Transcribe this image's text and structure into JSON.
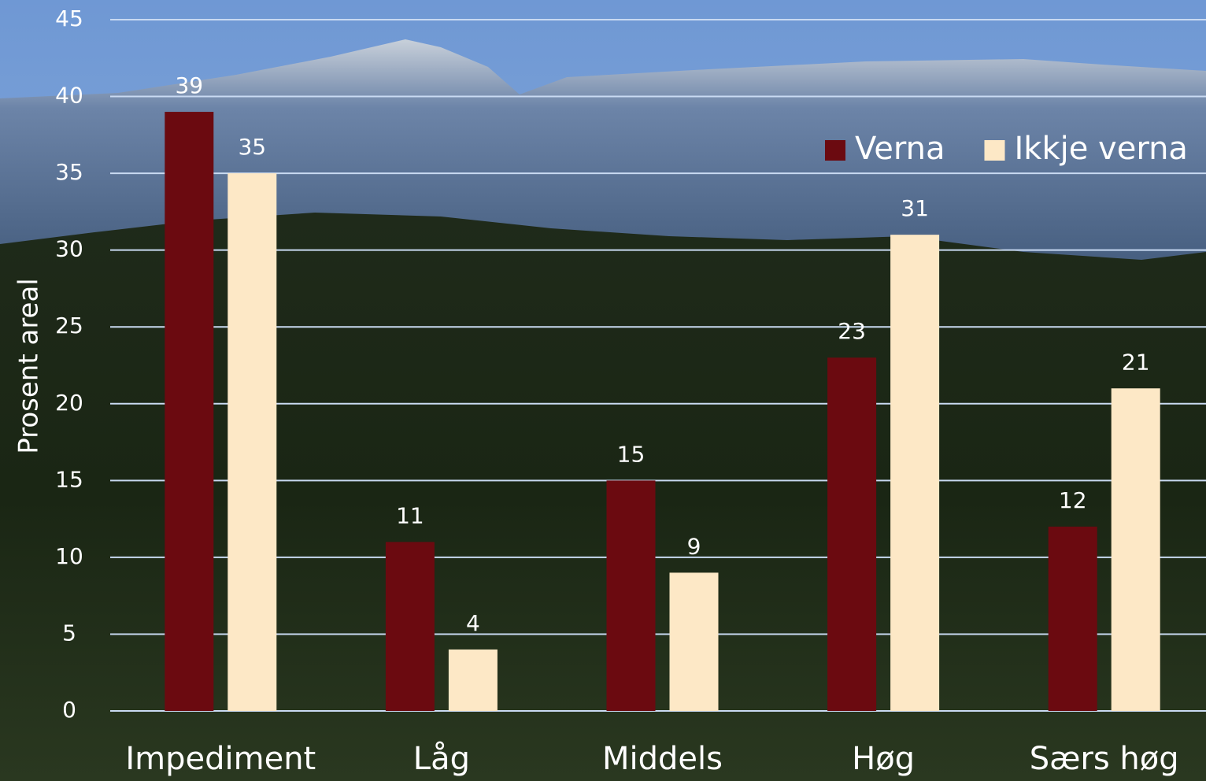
{
  "chart_data": {
    "type": "bar",
    "y_label": "Prosent areal",
    "categories": [
      "Impediment",
      "Låg",
      "Middels",
      "Høg",
      "Særs høg"
    ],
    "series": [
      {
        "name": "Verna",
        "color": "#6b0a10",
        "values": [
          39,
          11,
          15,
          23,
          12
        ]
      },
      {
        "name": "Ikkje verna",
        "color": "#fde8c6",
        "values": [
          35,
          4,
          9,
          31,
          21
        ]
      }
    ],
    "ylim": [
      0,
      45
    ],
    "yticks": [
      0,
      5,
      10,
      15,
      20,
      25,
      30,
      35,
      40,
      45
    ],
    "grid": true,
    "legend": "upper right"
  }
}
